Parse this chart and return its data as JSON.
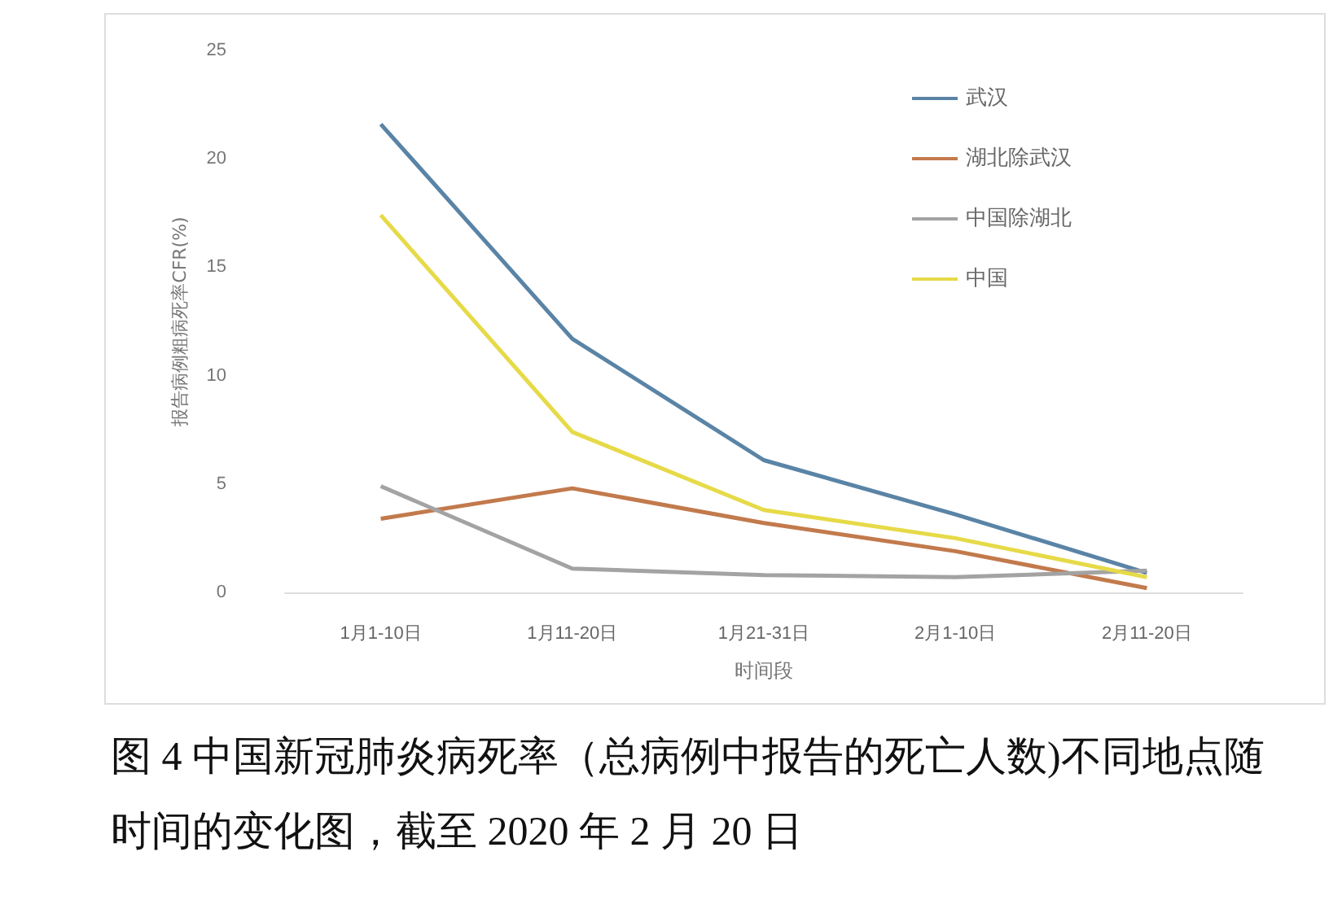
{
  "chart_data": {
    "type": "line",
    "xlabel": "时间段",
    "ylabel": "报告病例粗病死率CFR(%)",
    "categories": [
      "1月1-10日",
      "1月11-20日",
      "1月21-31日",
      "2月1-10日",
      "2月11-20日"
    ],
    "series": [
      {
        "name": "武汉",
        "color": "#5a84a6",
        "values": [
          21.6,
          11.7,
          6.1,
          3.6,
          0.9
        ]
      },
      {
        "name": "湖北除武汉",
        "color": "#c27a4c",
        "values": [
          3.4,
          4.8,
          3.2,
          1.9,
          0.2
        ]
      },
      {
        "name": "中国除湖北",
        "color": "#a3a3a3",
        "values": [
          4.9,
          1.1,
          0.8,
          0.7,
          1.0
        ]
      },
      {
        "name": "中国",
        "color": "#e6da48",
        "values": [
          17.4,
          7.4,
          3.8,
          2.5,
          0.7
        ]
      }
    ],
    "ylim": [
      0,
      25
    ],
    "yticks": [
      0,
      5,
      10,
      15,
      20,
      25
    ],
    "grid": false,
    "legend": "top right",
    "marker": "none",
    "line_style": "solid",
    "annotations": [
      "图 4 中国新冠肺炎病死率（总病例中报告的死亡人数)不同地点随时间的变化图，截至 2020 年 2 月 20 日"
    ]
  }
}
